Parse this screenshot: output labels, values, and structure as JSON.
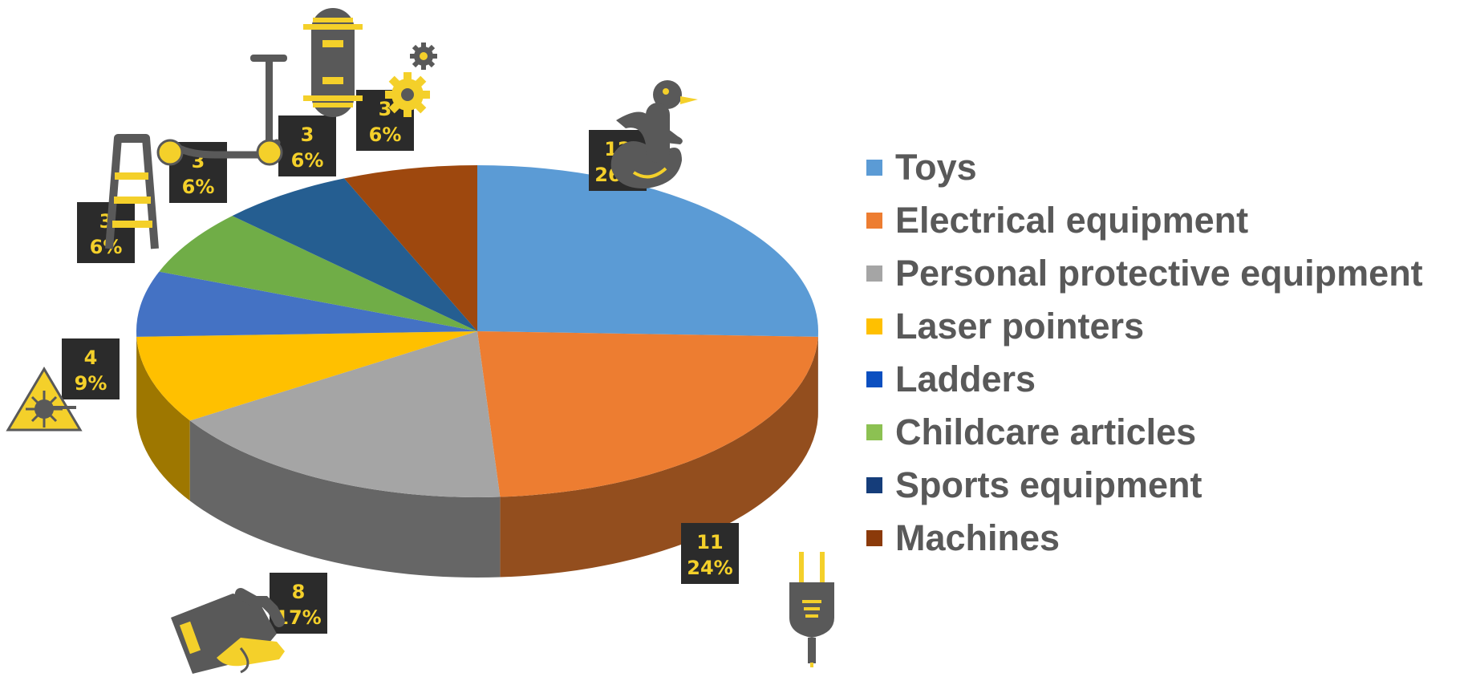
{
  "chart_data": {
    "type": "pie",
    "style": "3d-exploded-icons",
    "title": "",
    "categories": [
      "Toys",
      "Electrical equipment",
      "Personal protective equipment",
      "Laser pointers",
      "Ladders",
      "Childcare articles",
      "Sports equipment",
      "Machines"
    ],
    "values": [
      12,
      11,
      8,
      4,
      3,
      3,
      3,
      3
    ],
    "percent_labels": [
      "26%",
      "24%",
      "17%",
      "9%",
      "6%",
      "6%",
      "6%",
      "6%"
    ],
    "count_labels": [
      "12",
      "11",
      "8",
      "4",
      "3",
      "3",
      "3",
      "3"
    ],
    "colors": [
      "#5B9BD5",
      "#ED7D31",
      "#A5A5A5",
      "#FFC000",
      "#4472C4",
      "#70AD47",
      "#255E91",
      "#9E480E"
    ],
    "legend_colors": [
      "#5B9BD5",
      "#ED7D31",
      "#A5A5A5",
      "#FFC000",
      "#0B4FC0",
      "#8CC152",
      "#153D7A",
      "#8B3A0A"
    ],
    "icons": [
      "duck-icon",
      "plug-icon",
      "glove-icon",
      "laser-warning-icon",
      "ladder-icon",
      "scooter-icon",
      "skateboard-icon",
      "gear-icon"
    ],
    "legend_position": "right"
  }
}
